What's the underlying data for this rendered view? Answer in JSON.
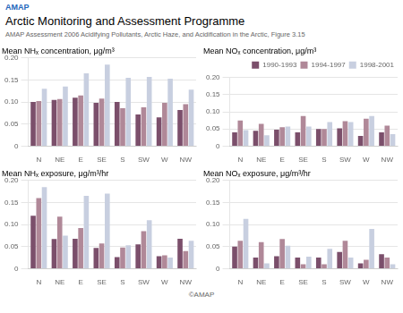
{
  "title": "Arctic Monitoring and Assessment Programme",
  "subtitle": "AMAP Assessment 2006 Acidifying Pollutants, Arctic Haze, and Acidification in the Arctic, Figure 3.15",
  "annotations": [
    "AMAP",
    "©AMAP"
  ],
  "chart_data": [
    {
      "type": "bar",
      "title": "Mean NHₓ concentration, μg/m³",
      "categories": [
        "N",
        "NE",
        "E",
        "SE",
        "S",
        "SW",
        "W",
        "NW"
      ],
      "series": [
        {
          "name": "1990-1993",
          "color": "#7b4f6b",
          "values": [
            0.1,
            0.105,
            0.11,
            0.098,
            0.1,
            0.072,
            0.065,
            0.082
          ]
        },
        {
          "name": "1994-1997",
          "color": "#b08898",
          "values": [
            0.102,
            0.107,
            0.115,
            0.108,
            0.086,
            0.088,
            0.098,
            0.095
          ]
        },
        {
          "name": "1998-2001",
          "color": "#c8cfe0",
          "values": [
            0.13,
            0.135,
            0.165,
            0.185,
            0.155,
            0.157,
            0.153,
            0.128
          ]
        }
      ],
      "ylim": [
        0,
        0.2
      ],
      "yticks": [
        0,
        0.05,
        {
          "value": 0.1,
          "label": "0.10"
        },
        0.15,
        {
          "value": 0.2,
          "label": "0.20"
        }
      ],
      "grid": true
    },
    {
      "type": "bar",
      "title": "Mean NOₓ concentration, μg/m³",
      "categories": [
        "N",
        "NE",
        "E",
        "SE",
        "S",
        "SW",
        "W",
        "NW"
      ],
      "series": [
        {
          "name": "1990-1993",
          "color": "#7b4f6b",
          "values": [
            0.04,
            0.045,
            0.048,
            0.04,
            0.05,
            0.052,
            0.03,
            0.04
          ]
        },
        {
          "name": "1994-1997",
          "color": "#b08898",
          "values": [
            0.075,
            0.065,
            0.055,
            0.088,
            0.05,
            0.073,
            0.08,
            0.06
          ]
        },
        {
          "name": "1998-2001",
          "color": "#c8cfe0",
          "values": [
            0.047,
            0.032,
            0.057,
            0.057,
            0.07,
            0.07,
            0.088,
            0.035
          ]
        }
      ],
      "ylim": [
        0,
        0.2
      ],
      "yticks": [
        0,
        0.05,
        {
          "value": 0.1,
          "label": "0.10"
        },
        0.15,
        {
          "value": 0.2,
          "label": "0.20"
        }
      ],
      "grid": true,
      "legend": "upper right"
    },
    {
      "type": "bar",
      "title": "Mean NHₓ exposure, μg/m³/hr",
      "categories": [
        "N",
        "NE",
        "E",
        "SE",
        "S",
        "SW",
        "W",
        "NW"
      ],
      "series": [
        {
          "name": "1990-1993",
          "color": "#7b4f6b",
          "values": [
            0.12,
            0.067,
            0.068,
            0.047,
            0.026,
            0.055,
            0.028,
            0.068
          ]
        },
        {
          "name": "1994-1997",
          "color": "#b08898",
          "values": [
            0.16,
            0.118,
            0.092,
            0.057,
            0.048,
            0.085,
            0.03,
            0.04
          ]
        },
        {
          "name": "1998-2001",
          "color": "#c8cfe0",
          "values": [
            0.185,
            0.075,
            0.165,
            0.17,
            0.053,
            0.11,
            0.025,
            0.063
          ]
        }
      ],
      "ylim": [
        0,
        0.2
      ],
      "yticks": [
        0,
        0.05,
        {
          "value": 0.1,
          "label": "0.10"
        },
        0.15,
        {
          "value": 0.2,
          "label": "0.20"
        }
      ],
      "grid": true
    },
    {
      "type": "bar",
      "title": "Mean NOₓ exposure, μg/m³/hr",
      "categories": [
        "N",
        "NE",
        "E",
        "SE",
        "S",
        "SW",
        "W",
        "NW"
      ],
      "series": [
        {
          "name": "1990-1993",
          "color": "#7b4f6b",
          "values": [
            0.05,
            0.025,
            0.028,
            0.025,
            0.025,
            0.038,
            0.012,
            0.033
          ]
        },
        {
          "name": "1994-1997",
          "color": "#b08898",
          "values": [
            0.063,
            0.06,
            0.067,
            0.01,
            0.01,
            0.063,
            0.02,
            0.025
          ]
        },
        {
          "name": "1998-2001",
          "color": "#c8cfe0",
          "values": [
            0.113,
            0.012,
            0.052,
            0.027,
            0.045,
            0.025,
            0.09,
            0.01
          ]
        }
      ],
      "ylim": [
        0,
        0.2
      ],
      "yticks": [
        0,
        0.05,
        {
          "value": 0.1,
          "label": "0.10"
        },
        0.15,
        {
          "value": 0.2,
          "label": "0.20"
        }
      ],
      "grid": true
    }
  ]
}
